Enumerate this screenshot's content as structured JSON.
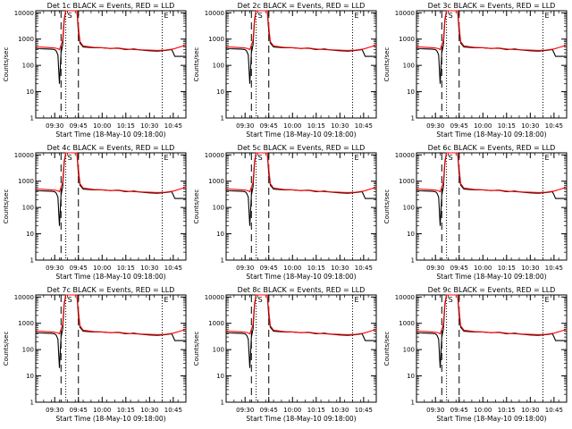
{
  "chart_data": {
    "type": "line",
    "panels": [
      {
        "title": "Det 1c BLACK = Events, RED = LLD"
      },
      {
        "title": "Det 2c BLACK = Events, RED = LLD"
      },
      {
        "title": "Det 3c BLACK = Events, RED = LLD"
      },
      {
        "title": "Det 4c BLACK = Events, RED = LLD"
      },
      {
        "title": "Det 5c BLACK = Events, RED = LLD"
      },
      {
        "title": "Det 6c BLACK = Events, RED = LLD"
      },
      {
        "title": "Det 7c BLACK = Events, RED = LLD"
      },
      {
        "title": "Det 8c BLACK = Events, RED = LLD"
      },
      {
        "title": "Det 9c BLACK = Events, RED = LLD"
      }
    ],
    "xlabel": "Start Time (18-May-10 09:18:00)",
    "ylabel": "Counts/sec",
    "yscale": "log",
    "ylim": [
      1,
      12000
    ],
    "xlim": [
      "09:18",
      "10:53"
    ],
    "x_ticks": [
      "09:30",
      "09:45",
      "10:00",
      "10:15",
      "10:30",
      "10:45"
    ],
    "y_ticks": [
      "1",
      "10",
      "100",
      "1000",
      "10000"
    ],
    "markers": [
      {
        "time": "09:34",
        "label": "",
        "style": "dashed"
      },
      {
        "time": "09:37",
        "label": "S",
        "style": "dotted"
      },
      {
        "time": "09:45",
        "label": "",
        "style": "dashed"
      },
      {
        "time": "10:38",
        "label": "E",
        "style": "dotted"
      }
    ],
    "series": [
      {
        "color": "#000000",
        "x": [
          "09:18",
          "09:20",
          "09:25",
          "09:28",
          "09:30",
          "09:31",
          "09:32",
          "09:33",
          "09:34",
          "09:35",
          "09:36",
          "09:37",
          "09:38",
          "09:39",
          "09:42",
          "09:44",
          "09:45",
          "09:46",
          "09:48",
          "09:55",
          "10:00",
          "10:05",
          "10:10",
          "10:15",
          "10:20",
          "10:25",
          "10:30",
          "10:35",
          "10:40",
          "10:44",
          "10:45",
          "10:46",
          "10:50",
          "10:53"
        ],
        "y": [
          450,
          430,
          420,
          410,
          400,
          350,
          250,
          20,
          300,
          600,
          5000,
          12000,
          12000,
          12000,
          12000,
          12000,
          2000,
          700,
          500,
          470,
          470,
          440,
          450,
          400,
          420,
          380,
          360,
          350,
          370,
          400,
          300,
          220,
          220,
          220
        ]
      },
      {
        "color": "#ff0000",
        "x": [
          "09:18",
          "09:20",
          "09:25",
          "09:28",
          "09:30",
          "09:32",
          "09:33",
          "09:35",
          "09:36",
          "09:37",
          "09:38",
          "09:42",
          "09:44",
          "09:45",
          "09:46",
          "09:48",
          "09:55",
          "10:00",
          "10:05",
          "10:10",
          "10:15",
          "10:20",
          "10:25",
          "10:30",
          "10:35",
          "10:40",
          "10:45",
          "10:50",
          "10:53"
        ],
        "y": [
          520,
          500,
          480,
          470,
          460,
          430,
          400,
          900,
          6000,
          12000,
          12000,
          12000,
          12000,
          3000,
          800,
          550,
          480,
          470,
          440,
          460,
          420,
          400,
          390,
          380,
          370,
          380,
          420,
          520,
          600
        ]
      }
    ]
  }
}
